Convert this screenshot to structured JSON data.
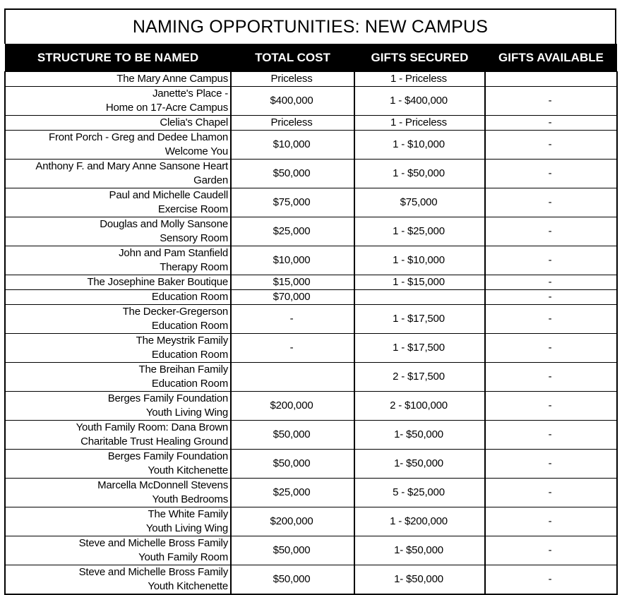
{
  "title": "NAMING OPPORTUNITIES: NEW CAMPUS",
  "columns": [
    "STRUCTURE TO BE NAMED",
    "TOTAL COST",
    "GIFTS SECURED",
    "GIFTS AVAILABLE"
  ],
  "rows": [
    {
      "name": [
        "The Mary Anne Campus"
      ],
      "cost": "Priceless",
      "secured": "1 - Priceless",
      "available": ""
    },
    {
      "name": [
        "Janette's Place -",
        "Home on 17-Acre Campus"
      ],
      "cost": "$400,000",
      "secured": "1 - $400,000",
      "available": "-"
    },
    {
      "name": [
        "Clelia's Chapel"
      ],
      "cost": "Priceless",
      "secured": "1 - Priceless",
      "available": "-"
    },
    {
      "name": [
        "Front Porch - Greg and Dedee Lhamon",
        "Welcome You"
      ],
      "cost": "$10,000",
      "secured": "1 - $10,000",
      "available": "-"
    },
    {
      "name": [
        "Anthony F. and Mary Anne Sansone Heart",
        "Garden"
      ],
      "cost": "$50,000",
      "secured": "1 - $50,000",
      "available": "-"
    },
    {
      "name": [
        "Paul and Michelle Caudell",
        "Exercise Room"
      ],
      "cost": "$75,000",
      "secured": "$75,000",
      "available": "-"
    },
    {
      "name": [
        "Douglas and Molly Sansone",
        "Sensory Room"
      ],
      "cost": "$25,000",
      "secured": "1 - $25,000",
      "available": "-"
    },
    {
      "name": [
        "John and Pam Stanfield",
        "Therapy Room"
      ],
      "cost": "$10,000",
      "secured": "1 - $10,000",
      "available": "-"
    },
    {
      "name": [
        "The Josephine Baker Boutique"
      ],
      "cost": "$15,000",
      "secured": "1 - $15,000",
      "available": "-"
    },
    {
      "name": [
        "Education Room"
      ],
      "cost": "$70,000",
      "secured": "",
      "available": "-"
    },
    {
      "name": [
        "The Decker-Gregerson",
        "Education Room"
      ],
      "cost": "-",
      "secured": "1 - $17,500",
      "available": "-"
    },
    {
      "name": [
        "The Meystrik Family",
        "Education Room"
      ],
      "cost": "-",
      "secured": "1 - $17,500",
      "available": "-"
    },
    {
      "name": [
        "The Breihan Family",
        "Education Room"
      ],
      "cost": "",
      "secured": "2 - $17,500",
      "available": "-"
    },
    {
      "name": [
        "Berges Family Foundation",
        "Youth Living Wing"
      ],
      "cost": "$200,000",
      "secured": "2 - $100,000",
      "available": "-"
    },
    {
      "name": [
        "Youth Family Room: Dana Brown",
        "Charitable Trust Healing Ground"
      ],
      "cost": "$50,000",
      "secured": "1- $50,000",
      "available": "-"
    },
    {
      "name": [
        "Berges Family Foundation",
        "Youth Kitchenette"
      ],
      "cost": "$50,000",
      "secured": "1- $50,000",
      "available": "-"
    },
    {
      "name": [
        "Marcella McDonnell Stevens",
        "Youth Bedrooms"
      ],
      "cost": "$25,000",
      "secured": "5 - $25,000",
      "available": "-"
    },
    {
      "name": [
        "The White Family",
        "Youth Living Wing"
      ],
      "cost": "$200,000",
      "secured": "1 - $200,000",
      "available": "-"
    },
    {
      "name": [
        "Steve and Michelle Bross Family",
        "Youth Family Room"
      ],
      "cost": "$50,000",
      "secured": "1- $50,000",
      "available": "-"
    },
    {
      "name": [
        "Steve and Michelle Bross Family",
        "Youth Kitchenette"
      ],
      "cost": "$50,000",
      "secured": "1- $50,000",
      "available": "-"
    }
  ]
}
